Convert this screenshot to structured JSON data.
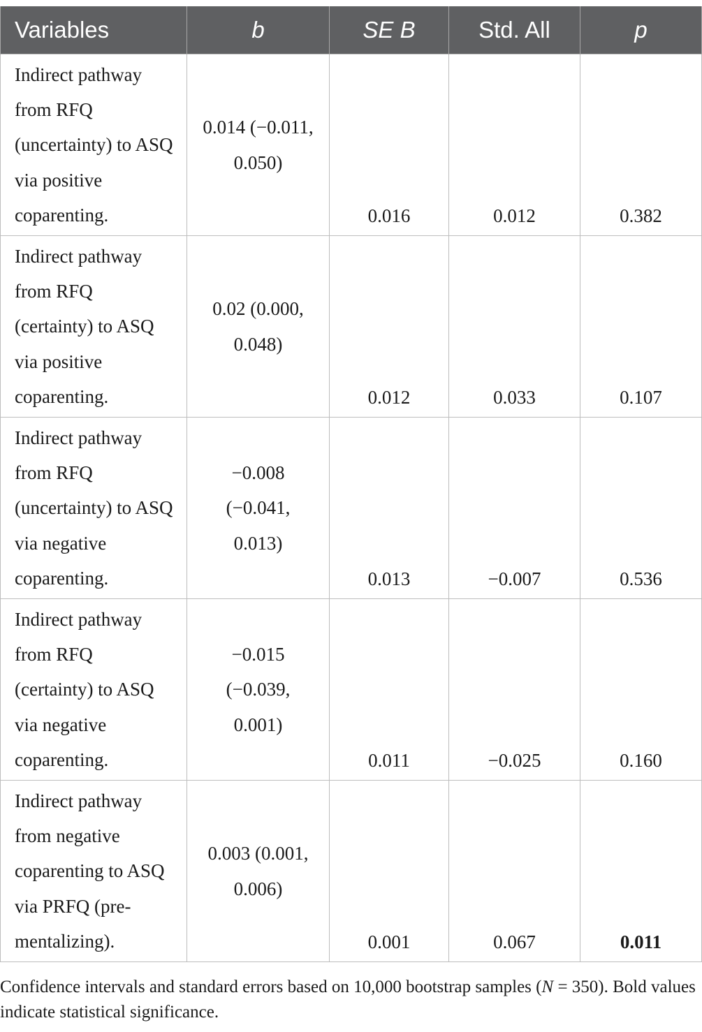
{
  "table": {
    "headers": {
      "variables": "Variables",
      "b": "b",
      "se_b": "SE B",
      "std_all": "Std. All",
      "p": "p"
    },
    "rows": [
      {
        "variable": "Indirect pathway from RFQ (uncertainty) to ASQ via positive coparenting.",
        "b": "0.014 (−0.011, 0.050)",
        "se_b": "0.016",
        "std_all": "0.012",
        "p": "0.382",
        "p_bold": false
      },
      {
        "variable": "Indirect pathway from RFQ (certainty) to ASQ via positive coparenting.",
        "b": "0.02 (0.000, 0.048)",
        "se_b": "0.012",
        "std_all": "0.033",
        "p": "0.107",
        "p_bold": false
      },
      {
        "variable": "Indirect pathway from RFQ (uncertainty) to ASQ via negative coparenting.",
        "b": "−0.008 (−0.041, 0.013)",
        "se_b": "0.013",
        "std_all": "−0.007",
        "p": "0.536",
        "p_bold": false
      },
      {
        "variable": "Indirect pathway from RFQ (certainty) to ASQ via negative coparenting.",
        "b": "−0.015 (−0.039, 0.001)",
        "se_b": "0.011",
        "std_all": "−0.025",
        "p": "0.160",
        "p_bold": false
      },
      {
        "variable": "Indirect pathway from negative coparenting to ASQ via PRFQ (pre-mentalizing).",
        "b": "0.003 (0.001, 0.006)",
        "se_b": "0.001",
        "std_all": "0.067",
        "p": "0.011",
        "p_bold": true
      }
    ]
  },
  "footnote": {
    "before_n": "Confidence intervals and standard errors based on 10,000 bootstrap samples (",
    "n_symbol": "N",
    "after_n": " = 350). Bold values indicate statistical significance."
  }
}
